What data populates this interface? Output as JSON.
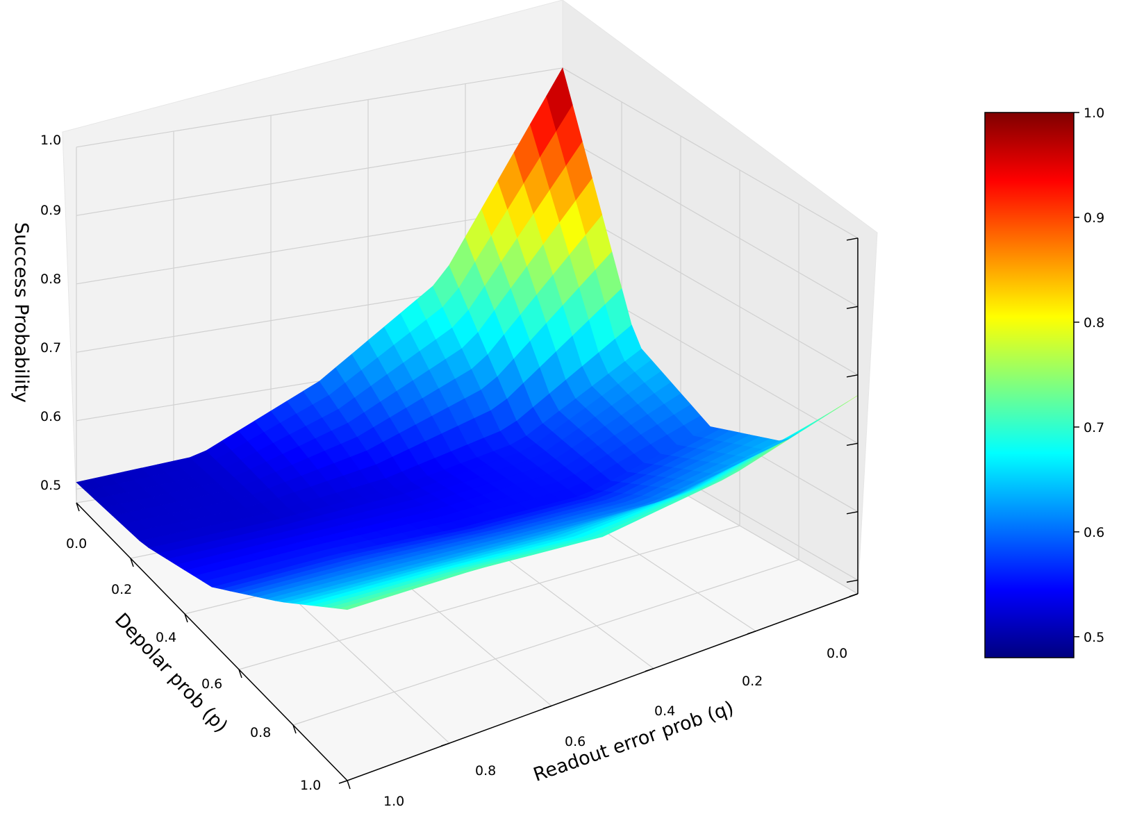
{
  "chart_data": {
    "type": "surface3d",
    "title": "",
    "xlabel": "Depolar prob (p)",
    "ylabel": "Readout error prob (q)",
    "zlabel": "Success Probability",
    "x_ticks": [
      "0.0",
      "0.2",
      "0.4",
      "0.6",
      "0.8",
      "1.0"
    ],
    "y_ticks": [
      "0.0",
      "0.2",
      "0.4",
      "0.6",
      "0.8",
      "1.0"
    ],
    "z_ticks": [
      "0.5",
      "0.6",
      "0.7",
      "0.8",
      "0.9",
      "1.0"
    ],
    "xlim": [
      0,
      1
    ],
    "ylim": [
      0,
      1
    ],
    "zlim": [
      0.48,
      1.0
    ],
    "grid": true,
    "colormap": "jet",
    "colorbar": {
      "range": [
        0.48,
        1.0
      ],
      "ticks": [
        "0.5",
        "0.6",
        "0.7",
        "0.8",
        "0.9",
        "1.0"
      ]
    },
    "grid_p": [
      0.0,
      0.25,
      0.5,
      0.75,
      1.0
    ],
    "grid_q": [
      0.0,
      0.25,
      0.5,
      0.75,
      1.0
    ],
    "surface_z": [
      [
        1.0,
        0.66,
        0.6,
        0.64,
        0.77
      ],
      [
        0.72,
        0.56,
        0.55,
        0.61,
        0.72
      ],
      [
        0.6,
        0.53,
        0.55,
        0.62,
        0.7
      ],
      [
        0.52,
        0.52,
        0.56,
        0.63,
        0.72
      ],
      [
        0.51,
        0.52,
        0.56,
        0.64,
        0.73
      ]
    ]
  }
}
